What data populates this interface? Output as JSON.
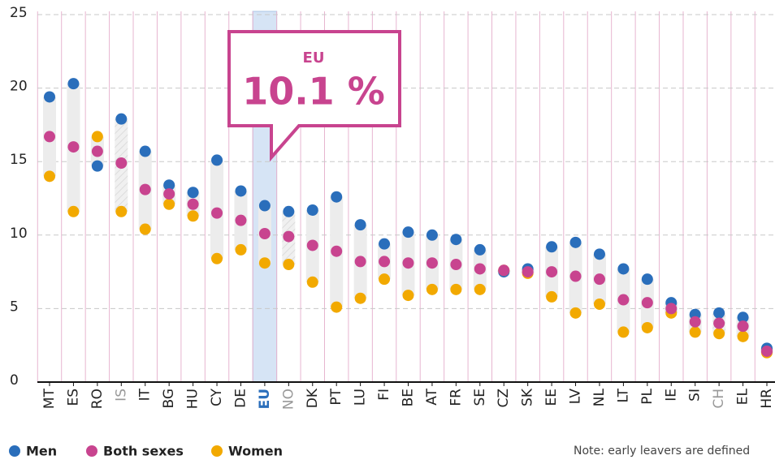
{
  "chart_data": {
    "type": "dot",
    "categories": [
      "MT",
      "ES",
      "RO",
      "IS",
      "IT",
      "BG",
      "HU",
      "CY",
      "DE",
      "EU",
      "NO",
      "DK",
      "PT",
      "LU",
      "FI",
      "BE",
      "AT",
      "FR",
      "SE",
      "CZ",
      "SK",
      "EE",
      "LV",
      "NL",
      "LT",
      "PL",
      "IE",
      "SI",
      "CH",
      "EL",
      "HR"
    ],
    "label_colors": [
      "#222",
      "#222",
      "#222",
      "#999",
      "#222",
      "#222",
      "#222",
      "#222",
      "#222",
      "#2a6ebb",
      "#999",
      "#222",
      "#222",
      "#222",
      "#222",
      "#222",
      "#222",
      "#222",
      "#222",
      "#222",
      "#222",
      "#222",
      "#222",
      "#222",
      "#222",
      "#222",
      "#222",
      "#222",
      "#999",
      "#222",
      "#222"
    ],
    "series": [
      {
        "name": "Men",
        "color": "#2a6ebb",
        "values": [
          19.4,
          20.3,
          14.7,
          17.9,
          15.7,
          13.4,
          12.9,
          15.1,
          13.0,
          12.0,
          11.6,
          11.7,
          12.6,
          10.7,
          9.4,
          10.2,
          10.0,
          9.7,
          9.0,
          7.5,
          7.7,
          9.2,
          9.5,
          8.7,
          7.7,
          7.0,
          5.4,
          4.6,
          4.7,
          4.4,
          2.3
        ]
      },
      {
        "name": "Both sexes",
        "color": "#c8448f",
        "values": [
          16.7,
          16.0,
          15.7,
          14.9,
          13.1,
          12.8,
          12.1,
          11.5,
          11.0,
          10.1,
          9.9,
          9.3,
          8.9,
          8.2,
          8.2,
          8.1,
          8.1,
          8.0,
          7.7,
          7.6,
          7.5,
          7.5,
          7.2,
          7.0,
          5.6,
          5.4,
          5.0,
          4.1,
          4.0,
          3.8,
          2.1
        ]
      },
      {
        "name": "Women",
        "color": "#f2a900",
        "values": [
          14.0,
          11.6,
          16.7,
          11.6,
          10.4,
          12.1,
          11.3,
          8.4,
          9.0,
          8.1,
          8.0,
          6.8,
          5.1,
          5.7,
          7.0,
          5.9,
          6.3,
          6.3,
          6.3,
          7.6,
          7.4,
          5.8,
          4.7,
          5.3,
          3.4,
          3.7,
          4.7,
          3.4,
          3.3,
          3.1,
          2.0
        ]
      }
    ],
    "ylim": [
      0,
      25
    ],
    "yticks": [
      0,
      5,
      10,
      15,
      20,
      25
    ],
    "grid": true,
    "highlight_color": "#d6e4f5",
    "annotation": {
      "title": "EU",
      "text": "10.1 %"
    },
    "note": "Note: early leavers are defined"
  }
}
